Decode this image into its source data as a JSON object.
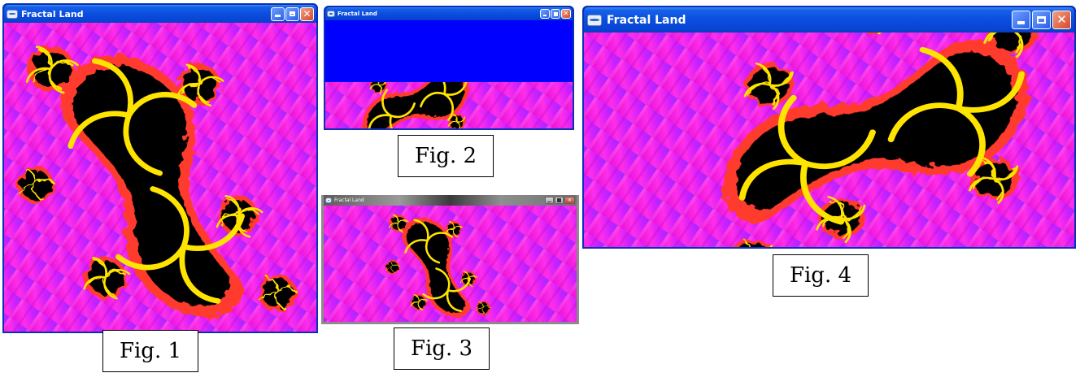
{
  "windows": [
    {
      "id": "fig1",
      "title": "Fractal Land",
      "controls": {
        "minimize": "minimize",
        "maximize": "maximize",
        "close": "close"
      }
    },
    {
      "id": "fig2",
      "title": "Fractal Land",
      "controls": {
        "minimize": "minimize",
        "maximize": "maximize",
        "close": "close"
      }
    },
    {
      "id": "fig3",
      "title": "Fractal Land",
      "controls": {
        "minimize": "minimize",
        "maximize": "maximize",
        "close": "close"
      }
    },
    {
      "id": "fig4",
      "title": "Fractal Land",
      "controls": {
        "minimize": "minimize",
        "maximize": "maximize",
        "close": "close"
      }
    }
  ],
  "figure_labels": [
    "Fig. 1",
    "Fig. 2",
    "Fig. 3",
    "Fig. 4"
  ],
  "icons": {
    "app": "window-app-icon",
    "minimize": "minimize-icon",
    "maximize": "maximize-icon",
    "close": "close-icon"
  },
  "colors": {
    "xp_titlebar": "#0b4ee0",
    "fractal_background_magenta": "#ff00ff",
    "fractal_background_purple": "#9b2bff",
    "fractal_edge_red": "#ff3b2f",
    "fractal_body": "#000000",
    "fractal_spiral": "#ffe400",
    "blank_area_blue": "#0000ff"
  }
}
